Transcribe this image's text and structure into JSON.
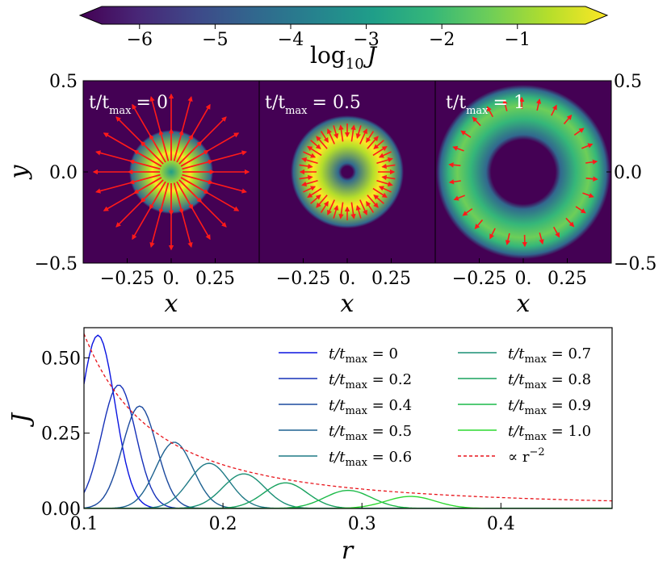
{
  "colors": {
    "viridis": [
      "#440154",
      "#482777",
      "#3e4989",
      "#31688e",
      "#26828e",
      "#1f9e89",
      "#35b779",
      "#6ece58",
      "#b5de2b",
      "#fde725"
    ],
    "arrow": "#ff1a1a",
    "reference": "#e8141b",
    "background_panel": "#440154"
  },
  "chart_data": [
    {
      "type": "colorbar",
      "label": "log10 J",
      "label_base": "log",
      "label_sub": "10",
      "label_var": "J",
      "range": [
        -6.5,
        -0.1
      ],
      "ticks": [
        -6,
        -5,
        -4,
        -3,
        -2,
        -1
      ],
      "tick_labels": [
        "−6",
        "−5",
        "−4",
        "−3",
        "−2",
        "−1"
      ],
      "extend": "both"
    },
    {
      "type": "heatmap",
      "xlabel": "x",
      "ylabel": "y",
      "xlim": [
        -0.5,
        0.5
      ],
      "ylim": [
        -0.5,
        0.5
      ],
      "xticks": [
        -0.25,
        0,
        0.25
      ],
      "xtick_labels": [
        "−0.25",
        "0.",
        "0.25"
      ],
      "yticks": [
        0.5,
        0.0,
        -0.5
      ],
      "ytick_labels": [
        "0.5",
        "0.0",
        "−0.5"
      ],
      "panels": [
        {
          "label_prefix": "t/t",
          "label_sub": "max",
          "label_value": "= 0",
          "t": 0,
          "inner_radius": 0.0,
          "peak_radius": 0.1,
          "outer_radius": 0.22
        },
        {
          "label_prefix": "t/t",
          "label_sub": "max",
          "label_value": "= 0.5",
          "t": 0.5,
          "inner_radius": 0.03,
          "peak_radius": 0.19,
          "outer_radius": 0.31
        },
        {
          "label_prefix": "t/t",
          "label_sub": "max",
          "label_value": "= 1",
          "t": 1,
          "inner_radius": 0.18,
          "peak_radius": 0.37,
          "outer_radius": 0.49
        }
      ]
    },
    {
      "type": "line",
      "xlabel": "r",
      "ylabel": "J",
      "xlim": [
        0.1,
        0.48
      ],
      "ylim": [
        0,
        0.6
      ],
      "xticks": [
        0.1,
        0.2,
        0.3,
        0.4
      ],
      "xtick_labels": [
        "0.1",
        "0.2",
        "0.3",
        "0.4"
      ],
      "yticks": [
        0.0,
        0.25,
        0.5
      ],
      "ytick_labels": [
        "0.00",
        "0.25",
        "0.50"
      ],
      "legend_position": "upper-right",
      "series": [
        {
          "name": "t/tmax = 0",
          "label_prefix": "t/t",
          "label_sub": "max",
          "label_value": " = 0",
          "peak_r": 0.11,
          "peak_J": 0.575,
          "width": 0.022,
          "color": "#0a14e0"
        },
        {
          "name": "t/tmax = 0.2",
          "label_prefix": "t/t",
          "label_sub": "max",
          "label_value": " = 0.2",
          "peak_r": 0.125,
          "peak_J": 0.41,
          "width": 0.022,
          "color": "#1530b8"
        },
        {
          "name": "t/tmax = 0.4",
          "label_prefix": "t/t",
          "label_sub": "max",
          "label_value": " = 0.4",
          "peak_r": 0.14,
          "peak_J": 0.34,
          "width": 0.022,
          "color": "#1c4a9e"
        },
        {
          "name": "t/tmax = 0.5",
          "label_prefix": "t/t",
          "label_sub": "max",
          "label_value": " = 0.5",
          "peak_r": 0.165,
          "peak_J": 0.22,
          "width": 0.024,
          "color": "#1d6190"
        },
        {
          "name": "t/tmax = 0.6",
          "label_prefix": "t/t",
          "label_sub": "max",
          "label_value": " = 0.6",
          "peak_r": 0.19,
          "peak_J": 0.15,
          "width": 0.026,
          "color": "#1f7a86"
        },
        {
          "name": "t/tmax = 0.7",
          "label_prefix": "t/t",
          "label_sub": "max",
          "label_value": " = 0.7",
          "peak_r": 0.215,
          "peak_J": 0.115,
          "width": 0.027,
          "color": "#1a8f75"
        },
        {
          "name": "t/tmax = 0.8",
          "label_prefix": "t/t",
          "label_sub": "max",
          "label_value": " = 0.8",
          "peak_r": 0.245,
          "peak_J": 0.085,
          "width": 0.028,
          "color": "#18a25f"
        },
        {
          "name": "t/tmax = 0.9",
          "label_prefix": "t/t",
          "label_sub": "max",
          "label_value": " = 0.9",
          "peak_r": 0.29,
          "peak_J": 0.06,
          "width": 0.03,
          "color": "#1cba48"
        },
        {
          "name": "t/tmax = 1.0",
          "label_prefix": "t/t",
          "label_sub": "max",
          "label_value": " = 1.0",
          "peak_r": 0.335,
          "peak_J": 0.04,
          "width": 0.032,
          "color": "#2bd82e"
        }
      ],
      "reference": {
        "name": "∝ r^-2",
        "label": "∝ r",
        "label_sup": "−2",
        "coefficient": 0.0058,
        "style": "dashed"
      }
    }
  ]
}
